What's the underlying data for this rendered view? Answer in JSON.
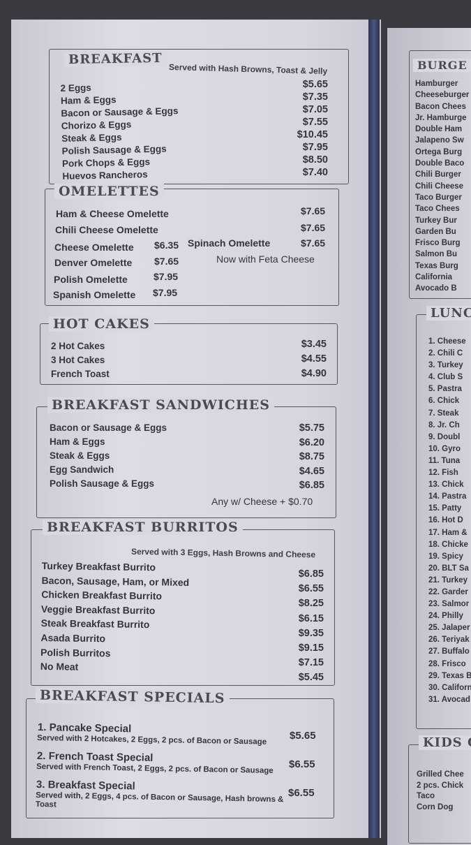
{
  "breakfast": {
    "title": "BREAKFAST",
    "note": "Served with Hash Browns, Toast & Jelly",
    "items": [
      {
        "name": "2 Eggs",
        "price": "$5.65"
      },
      {
        "name": "Ham & Eggs",
        "price": "$7.35"
      },
      {
        "name": "Bacon or Sausage & Eggs",
        "price": "$7.05"
      },
      {
        "name": "Chorizo & Eggs",
        "price": "$7.55"
      },
      {
        "name": "Steak & Eggs",
        "price": "$10.45"
      },
      {
        "name": "Polish Sausage & Eggs",
        "price": "$7.95"
      },
      {
        "name": "Pork Chops & Eggs",
        "price": "$8.50"
      },
      {
        "name": "Huevos Rancheros",
        "price": "$7.40"
      }
    ]
  },
  "omelettes": {
    "title": "OMELETTES",
    "ham_cheese": {
      "name": "Ham & Cheese Omelette",
      "price": "$7.65"
    },
    "chili_cheese": {
      "name": "Chili Cheese Omelette",
      "price": "$7.65"
    },
    "cheese": {
      "name": "Cheese Omelette",
      "price": "$6.35"
    },
    "spinach": {
      "name": "Spinach Omelette",
      "price": "$7.65"
    },
    "denver": {
      "name": "Denver Omelette",
      "price": "$7.65"
    },
    "feta_note": "Now with Feta Cheese",
    "polish": {
      "name": "Polish Omelette",
      "price": "$7.95"
    },
    "spanish": {
      "name": "Spanish Omelette",
      "price": "$7.95"
    }
  },
  "hot_cakes": {
    "title": "HOT CAKES",
    "items": [
      {
        "name": "2 Hot Cakes",
        "price": "$3.45"
      },
      {
        "name": "3 Hot Cakes",
        "price": "$4.55"
      },
      {
        "name": "French Toast",
        "price": "$4.90"
      }
    ]
  },
  "sandwiches": {
    "title": "BREAKFAST SANDWICHES",
    "items": [
      {
        "name": "Bacon or Sausage & Eggs",
        "price": "$5.75"
      },
      {
        "name": "Ham & Eggs",
        "price": "$6.20"
      },
      {
        "name": "Steak & Eggs",
        "price": "$8.75"
      },
      {
        "name": "Egg Sandwich",
        "price": "$4.65"
      },
      {
        "name": "Polish Sausage & Eggs",
        "price": "$6.85"
      }
    ],
    "cheese_note": "Any w/ Cheese + $0.70"
  },
  "burritos": {
    "title": "BREAKFAST BURRITOS",
    "note": "Served with 3 Eggs, Hash Browns and Cheese",
    "names": [
      "Turkey Breakfast Burrito",
      "Bacon, Sausage, Ham, or Mixed",
      "Chicken Breakfast Burrito",
      "Veggie Breakfast Burrito",
      "Steak Breakfast Burrito",
      "Asada Burrito",
      "Polish Burritos",
      "No Meat"
    ],
    "prices": [
      "$6.85",
      "$6.55",
      "$8.25",
      "$6.15",
      "$9.35",
      "$9.15",
      "$7.15",
      "$5.45"
    ]
  },
  "specials": {
    "title": "BREAKFAST SPECIALS",
    "items": [
      {
        "name": "1. Pancake Special",
        "desc": "Served with 2 Hotcakes, 2 Eggs, 2 pcs. of Bacon or Sausage",
        "price": "$5.65"
      },
      {
        "name": "2. French Toast Special",
        "desc": "Served with French Toast, 2 Eggs, 2 pcs. of Bacon or Sausage",
        "price": "$6.55"
      },
      {
        "name": "3. Breakfast Special",
        "desc": "Served with, 2 Eggs, 4 pcs. of Bacon or Sausage, Hash browns & Toast",
        "price": "$6.55"
      }
    ]
  },
  "burgers": {
    "title": "BURGE",
    "items": [
      "Hamburger",
      "Cheeseburger",
      "Bacon Chees",
      "Jr. Hamburge",
      "Double Ham",
      "Jalapeno Sw",
      "Ortega Burg",
      "Double Baco",
      "Chili Burger",
      "Chili Cheese",
      "Taco Burger",
      "Taco Chees",
      "Turkey Bur",
      "Garden Bu",
      "Frisco Burg",
      "Salmon Bu",
      "Texas Burg",
      "California",
      "Avocado B"
    ]
  },
  "lunch": {
    "title": "LUNC",
    "items": [
      "1. Cheese",
      "2. Chili C",
      "3. Turkey",
      "4. Club S",
      "5. Pastra",
      "6. Chick",
      "7. Steak",
      "8. Jr. Ch",
      "9. Doubl",
      "10. Gyro",
      "11. Tuna",
      "12. Fish",
      "13. Chick",
      "14. Pastra",
      "15. Patty",
      "16. Hot D",
      "17. Ham &",
      "18. Chicke",
      "19. Spicy",
      "20. BLT Sa",
      "21. Turkey",
      "22. Garder",
      "23. Salmor",
      "24. Philly",
      "25. Jalaper",
      "26. Teriyak",
      "27. Buffalo",
      "28. Frisco",
      "29. Texas B",
      "30. Californ",
      "31. Avocad"
    ]
  },
  "kids": {
    "title": "KIDS C",
    "items": [
      "Grilled Chee",
      "2 pcs. Chick",
      "Taco",
      "Corn Dog"
    ]
  }
}
